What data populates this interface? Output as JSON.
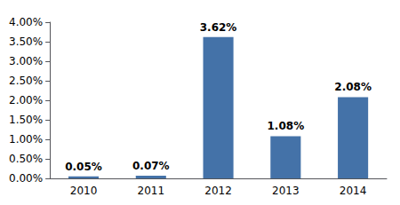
{
  "chart_data": {
    "type": "bar",
    "categories": [
      "2010",
      "2011",
      "2012",
      "2013",
      "2014"
    ],
    "values": [
      0.0005,
      0.0007,
      0.0362,
      0.0108,
      0.0208
    ],
    "value_labels": [
      "0.05%",
      "0.07%",
      "3.62%",
      "1.08%",
      "2.08%"
    ],
    "color": "#4472a8",
    "ylim": [
      0,
      0.04
    ],
    "yticks": [
      {
        "value": 0.0,
        "label": "0.00%"
      },
      {
        "value": 0.005,
        "label": "0.50%"
      },
      {
        "value": 0.01,
        "label": "1.00%"
      },
      {
        "value": 0.015,
        "label": "1.50%"
      },
      {
        "value": 0.02,
        "label": "2.00%"
      },
      {
        "value": 0.025,
        "label": "2.50%"
      },
      {
        "value": 0.03,
        "label": "3.00%"
      },
      {
        "value": 0.035,
        "label": "3.50%"
      },
      {
        "value": 0.04,
        "label": "4.00%"
      }
    ],
    "grid": false
  }
}
